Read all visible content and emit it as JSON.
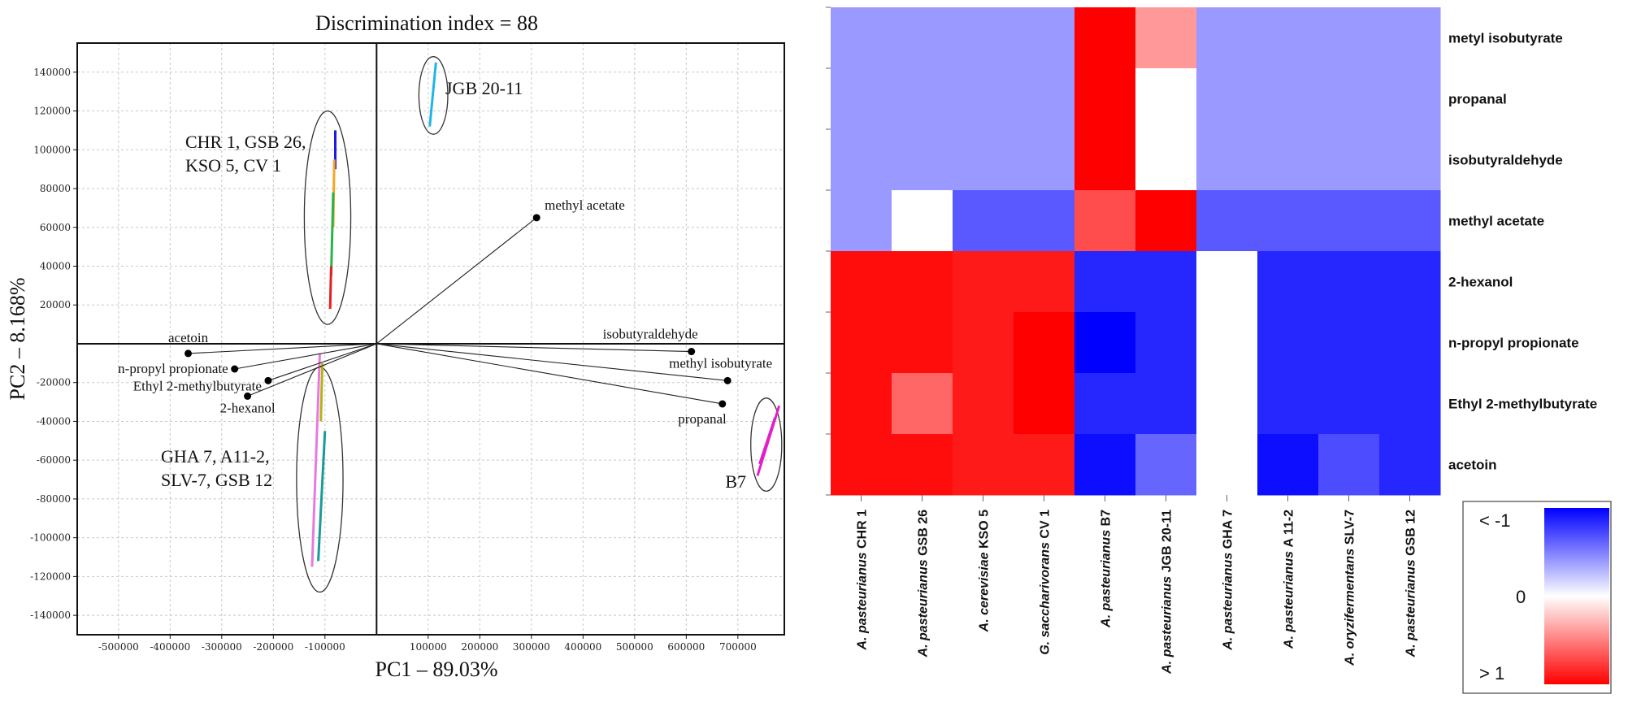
{
  "chart_data": [
    {
      "type": "scatter",
      "title": "Discrimination index = 88",
      "xlabel": "PC1 – 89.03%",
      "ylabel": "PC2 – 8.168%",
      "xlim": [
        -580000,
        790000
      ],
      "ylim": [
        -150000,
        155000
      ],
      "x_ticks": [
        -500000,
        -400000,
        -300000,
        -200000,
        -100000,
        100000,
        200000,
        300000,
        400000,
        500000,
        600000,
        700000
      ],
      "y_ticks": [
        140000,
        120000,
        100000,
        80000,
        60000,
        40000,
        20000,
        -20000,
        -40000,
        -60000,
        -80000,
        -100000,
        -120000,
        -140000
      ],
      "grid": true,
      "loadings": [
        {
          "name": "methyl acetate",
          "x": 310000,
          "y": 65000
        },
        {
          "name": "acetoin",
          "x": -365000,
          "y": -5000
        },
        {
          "name": "n-propyl propionate",
          "x": -275000,
          "y": -13000
        },
        {
          "name": "Ethyl 2-methylbutyrate",
          "x": -210000,
          "y": -19000
        },
        {
          "name": "2-hexanol",
          "x": -250000,
          "y": -27000
        },
        {
          "name": "isobutyraldehyde",
          "x": 610000,
          "y": -4000
        },
        {
          "name": "methyl isobutyrate",
          "x": 680000,
          "y": -19000
        },
        {
          "name": "propanal",
          "x": 670000,
          "y": -31000
        }
      ],
      "groups": [
        {
          "label": "JGB 20-11",
          "cx": 110000,
          "cy": 128000,
          "rx": 28000,
          "ry": 20000,
          "traces": [
            {
              "color": "#1fb5ea",
              "x1": 115000,
              "y1": 145000,
              "x2": 103000,
              "y2": 112000
            }
          ]
        },
        {
          "label_lines": [
            "CHR 1, GSB 26,",
            "KSO 5, CV 1"
          ],
          "cx": -95000,
          "cy": 65000,
          "rx": 45000,
          "ry": 55000,
          "traces": [
            {
              "color": "#1a1ae6",
              "x1": -80000,
              "y1": 110000,
              "x2": -80000,
              "y2": 90000
            },
            {
              "color": "#f5a623",
              "x1": -82000,
              "y1": 95000,
              "x2": -84000,
              "y2": 60000
            },
            {
              "color": "#29b34a",
              "x1": -84000,
              "y1": 78000,
              "x2": -88000,
              "y2": 35000
            },
            {
              "color": "#e32020",
              "x1": -88000,
              "y1": 40000,
              "x2": -90000,
              "y2": 18000
            }
          ]
        },
        {
          "label_lines": [
            "GHA 7, A11-2,",
            "SLV-7, GSB 12"
          ],
          "cx": -110000,
          "cy": -70000,
          "rx": 45000,
          "ry": 58000,
          "traces": [
            {
              "color": "#e87adf",
              "x1": -110000,
              "y1": -5000,
              "x2": -125000,
              "y2": -115000
            },
            {
              "color": "#b3b318",
              "x1": -105000,
              "y1": -10000,
              "x2": -108000,
              "y2": -40000
            },
            {
              "color": "#1a9a9a",
              "x1": -100000,
              "y1": -45000,
              "x2": -113000,
              "y2": -112000
            }
          ]
        },
        {
          "label": "B7",
          "cx": 755000,
          "cy": -52000,
          "rx": 30000,
          "ry": 24000,
          "traces": [
            {
              "color": "#e020c8",
              "x1": 780000,
              "y1": -32000,
              "x2": 738000,
              "y2": -68000
            },
            {
              "color": "#e020c8",
              "x1": 772000,
              "y1": -38000,
              "x2": 742000,
              "y2": -62000
            }
          ]
        }
      ]
    },
    {
      "type": "heatmap",
      "rows": [
        "metyl isobutyrate",
        "propanal",
        "isobutyraldehyde",
        "methyl acetate",
        "2-hexanol",
        "n-propyl propionate",
        "Ethyl 2-methylbutyrate",
        "acetoin"
      ],
      "columns": [
        {
          "genus": "A. pasteurianus",
          "strain": "CHR 1"
        },
        {
          "genus": "A. pasteurianus",
          "strain": "GSB 26"
        },
        {
          "genus": "A. cerevisiae",
          "strain": "KSO 5"
        },
        {
          "genus": "G. saccharivorans",
          "strain": "CV 1"
        },
        {
          "genus": "A. pasteurianus",
          "strain": "B7"
        },
        {
          "genus": "A. pasteurianus",
          "strain": "JGB 20-11"
        },
        {
          "genus": "A. pasteurianus",
          "strain": "GHA 7"
        },
        {
          "genus": "A. pasteurianus",
          "strain": "A 11-2"
        },
        {
          "genus": "A. oryzifermentans",
          "strain": "SLV-7"
        },
        {
          "genus": "A. pasteurianus",
          "strain": "GSB 12"
        }
      ],
      "values": [
        [
          -0.4,
          -0.4,
          -0.4,
          -0.4,
          1.0,
          0.4,
          -0.4,
          -0.4,
          -0.4,
          -0.4
        ],
        [
          -0.4,
          -0.4,
          -0.4,
          -0.4,
          1.0,
          0.0,
          -0.4,
          -0.4,
          -0.4,
          -0.4
        ],
        [
          -0.4,
          -0.4,
          -0.4,
          -0.4,
          1.0,
          0.0,
          -0.4,
          -0.4,
          -0.4,
          -0.4
        ],
        [
          -0.4,
          0.0,
          -0.65,
          -0.65,
          0.7,
          1.0,
          -0.65,
          -0.65,
          -0.65,
          -0.65
        ],
        [
          0.95,
          0.95,
          0.9,
          0.9,
          -0.85,
          -0.85,
          0.0,
          -0.85,
          -0.85,
          -0.85
        ],
        [
          0.95,
          0.95,
          0.9,
          1.0,
          -1.0,
          -0.85,
          0.0,
          -0.85,
          -0.85,
          -0.85
        ],
        [
          0.95,
          0.6,
          0.9,
          1.0,
          -0.85,
          -0.85,
          0.0,
          -0.85,
          -0.85,
          -0.85
        ],
        [
          0.95,
          0.95,
          0.9,
          0.9,
          -0.95,
          -0.6,
          0.0,
          -0.95,
          -0.7,
          -0.85
        ]
      ],
      "legend": {
        "high_label": "< -1",
        "mid_label": "0",
        "low_label": "> 1",
        "neg_color": "#0000ff",
        "zero_color": "#ffffff",
        "pos_color": "#ff0000"
      }
    }
  ]
}
